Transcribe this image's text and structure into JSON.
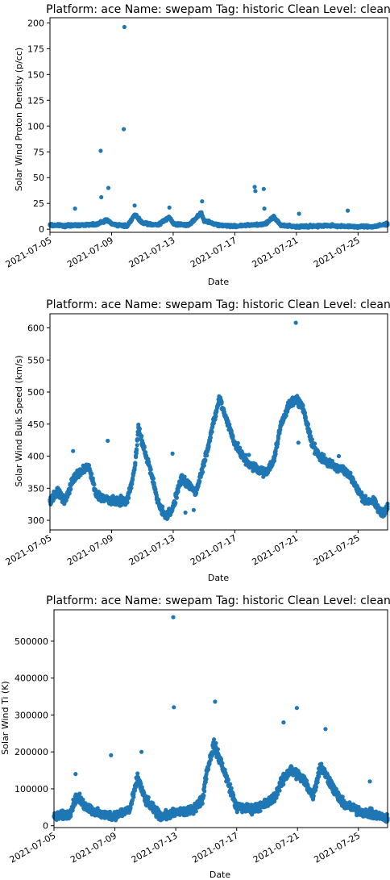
{
  "chart_data": [
    {
      "type": "scatter",
      "title": "Platform: ace Name: swepam Tag: historic Clean Level: clean",
      "xlabel": "Date",
      "ylabel": "Solar Wind Proton Density (p/cc)",
      "xlim": [
        "2021-07-05",
        "2021-07-26T22:00"
      ],
      "ylim": [
        -3,
        205
      ],
      "xticks": [
        "2021-07-05",
        "2021-07-09",
        "2021-07-13",
        "2021-07-17",
        "2021-07-21",
        "2021-07-25"
      ],
      "yticks": [
        "0",
        "25",
        "50",
        "75",
        "100",
        "125",
        "150",
        "175",
        "200"
      ],
      "color": "#1f77b4",
      "series": [
        {
          "baseline": [
            [
              "2021-07-05",
              4
            ],
            [
              "2021-07-06",
              3.5
            ],
            [
              "2021-07-07",
              4
            ],
            [
              "2021-07-08",
              5
            ],
            [
              "2021-07-08T18:00",
              9
            ],
            [
              "2021-07-09",
              5
            ],
            [
              "2021-07-10",
              3
            ],
            [
              "2021-07-10T12:00",
              14
            ],
            [
              "2021-07-11",
              6
            ],
            [
              "2021-07-12",
              4
            ],
            [
              "2021-07-12T18:00",
              12
            ],
            [
              "2021-07-13",
              5
            ],
            [
              "2021-07-14",
              4
            ],
            [
              "2021-07-14T20:00",
              16
            ],
            [
              "2021-07-15",
              8
            ],
            [
              "2021-07-16",
              4
            ],
            [
              "2021-07-17",
              3
            ],
            [
              "2021-07-18",
              4
            ],
            [
              "2021-07-19",
              5
            ],
            [
              "2021-07-19T12:00",
              12
            ],
            [
              "2021-07-20",
              4
            ],
            [
              "2021-07-21",
              2.5
            ],
            [
              "2021-07-22",
              3
            ],
            [
              "2021-07-23",
              3.5
            ],
            [
              "2021-07-24",
              3
            ],
            [
              "2021-07-25",
              2.5
            ],
            [
              "2021-07-26",
              2.5
            ],
            [
              "2021-07-26T22:00",
              5
            ]
          ],
          "spread": 2.5,
          "outliers": [
            [
              "2021-07-06T15:00",
              20
            ],
            [
              "2021-07-08T07:00",
              76
            ],
            [
              "2021-07-08T08:00",
              31
            ],
            [
              "2021-07-08T19:00",
              40
            ],
            [
              "2021-07-09T19:00",
              97
            ],
            [
              "2021-07-09T20:00",
              196
            ],
            [
              "2021-07-10T12:00",
              23
            ],
            [
              "2021-07-12T18:00",
              21
            ],
            [
              "2021-07-14T21:00",
              27
            ],
            [
              "2021-07-18T07:00",
              41
            ],
            [
              "2021-07-18T08:00",
              37
            ],
            [
              "2021-07-18T21:00",
              39
            ],
            [
              "2021-07-18T22:00",
              20
            ],
            [
              "2021-07-21T04:00",
              15
            ],
            [
              "2021-07-24T08:00",
              18
            ]
          ]
        }
      ]
    },
    {
      "type": "scatter",
      "title": "Platform: ace Name: swepam Tag: historic Clean Level: clean",
      "xlabel": "Date",
      "ylabel": "Solar Wind Bulk Speed (km/s)",
      "xlim": [
        "2021-07-05",
        "2021-07-26T22:00"
      ],
      "ylim": [
        285,
        622
      ],
      "xticks": [
        "2021-07-05",
        "2021-07-09",
        "2021-07-13",
        "2021-07-17",
        "2021-07-21",
        "2021-07-25"
      ],
      "yticks": [
        "300",
        "350",
        "400",
        "450",
        "500",
        "550",
        "600"
      ],
      "color": "#1f77b4",
      "series": [
        {
          "baseline": [
            [
              "2021-07-05",
              330
            ],
            [
              "2021-07-05T12:00",
              345
            ],
            [
              "2021-07-06",
              330
            ],
            [
              "2021-07-06T12:00",
              365
            ],
            [
              "2021-07-07",
              375
            ],
            [
              "2021-07-07T12:00",
              385
            ],
            [
              "2021-07-08",
              340
            ],
            [
              "2021-07-08T12:00",
              335
            ],
            [
              "2021-07-09",
              330
            ],
            [
              "2021-07-10",
              330
            ],
            [
              "2021-07-10T12:00",
              380
            ],
            [
              "2021-07-10T18:00",
              445
            ],
            [
              "2021-07-11",
              420
            ],
            [
              "2021-07-11T12:00",
              380
            ],
            [
              "2021-07-12",
              330
            ],
            [
              "2021-07-12T12:00",
              305
            ],
            [
              "2021-07-13",
              320
            ],
            [
              "2021-07-13T12:00",
              365
            ],
            [
              "2021-07-14",
              355
            ],
            [
              "2021-07-14T12:00",
              345
            ],
            [
              "2021-07-15",
              390
            ],
            [
              "2021-07-15T12:00",
              440
            ],
            [
              "2021-07-16",
              490
            ],
            [
              "2021-07-16T12:00",
              455
            ],
            [
              "2021-07-17",
              420
            ],
            [
              "2021-07-17T12:00",
              400
            ],
            [
              "2021-07-18",
              385
            ],
            [
              "2021-07-19",
              375
            ],
            [
              "2021-07-19T12:00",
              390
            ],
            [
              "2021-07-20",
              450
            ],
            [
              "2021-07-20T12:00",
              480
            ],
            [
              "2021-07-21",
              490
            ],
            [
              "2021-07-21T12:00",
              470
            ],
            [
              "2021-07-22",
              420
            ],
            [
              "2021-07-22T12:00",
              400
            ],
            [
              "2021-07-23",
              390
            ],
            [
              "2021-07-24",
              380
            ],
            [
              "2021-07-24T12:00",
              370
            ],
            [
              "2021-07-25",
              345
            ],
            [
              "2021-07-25T12:00",
              330
            ],
            [
              "2021-07-26",
              330
            ],
            [
              "2021-07-26T12:00",
              310
            ],
            [
              "2021-07-26T22:00",
              320
            ]
          ],
          "spread": 10,
          "outliers": [
            [
              "2021-07-06T12:00",
              408
            ],
            [
              "2021-07-08T18:00",
              424
            ],
            [
              "2021-07-12T23:00",
              404
            ],
            [
              "2021-07-13T19:00",
              312
            ],
            [
              "2021-07-14T08:00",
              316
            ],
            [
              "2021-07-17T22:00",
              402
            ],
            [
              "2021-07-20T23:00",
              608
            ],
            [
              "2021-07-21T03:00",
              421
            ],
            [
              "2021-07-23T18:00",
              400
            ]
          ]
        }
      ]
    },
    {
      "type": "scatter",
      "title": "Platform: ace Name: swepam Tag: historic Clean Level: clean",
      "xlabel": "Date",
      "ylabel": "Solar Wind Ti (K)",
      "xlim": [
        "2021-07-05",
        "2021-07-26T22:00"
      ],
      "ylim": [
        -5000,
        585000
      ],
      "xticks": [
        "2021-07-05",
        "2021-07-09",
        "2021-07-13",
        "2021-07-17",
        "2021-07-21",
        "2021-07-25"
      ],
      "yticks": [
        "0",
        "100000",
        "200000",
        "300000",
        "400000",
        "500000"
      ],
      "color": "#1f77b4",
      "series": [
        {
          "baseline": [
            [
              "2021-07-05",
              25000
            ],
            [
              "2021-07-06",
              30000
            ],
            [
              "2021-07-06T12:00",
              80000
            ],
            [
              "2021-07-07",
              55000
            ],
            [
              "2021-07-08",
              30000
            ],
            [
              "2021-07-09",
              28000
            ],
            [
              "2021-07-10",
              45000
            ],
            [
              "2021-07-10T12:00",
              130000
            ],
            [
              "2021-07-11",
              70000
            ],
            [
              "2021-07-12",
              25000
            ],
            [
              "2021-07-13",
              35000
            ],
            [
              "2021-07-14",
              40000
            ],
            [
              "2021-07-14T18:00",
              70000
            ],
            [
              "2021-07-15",
              140000
            ],
            [
              "2021-07-15T12:00",
              220000
            ],
            [
              "2021-07-16",
              170000
            ],
            [
              "2021-07-17",
              50000
            ],
            [
              "2021-07-18",
              45000
            ],
            [
              "2021-07-19",
              60000
            ],
            [
              "2021-07-19T12:00",
              80000
            ],
            [
              "2021-07-20",
              120000
            ],
            [
              "2021-07-20T12:00",
              150000
            ],
            [
              "2021-07-21",
              140000
            ],
            [
              "2021-07-21T12:00",
              120000
            ],
            [
              "2021-07-22",
              80000
            ],
            [
              "2021-07-22T12:00",
              160000
            ],
            [
              "2021-07-23",
              130000
            ],
            [
              "2021-07-23T12:00",
              90000
            ],
            [
              "2021-07-24",
              60000
            ],
            [
              "2021-07-25",
              40000
            ],
            [
              "2021-07-26",
              30000
            ],
            [
              "2021-07-26T22:00",
              20000
            ]
          ],
          "spread": 25000,
          "outliers": [
            [
              "2021-07-08T18:00",
              191000
            ],
            [
              "2021-07-12T20:00",
              565000
            ],
            [
              "2021-07-12T21:00",
              321000
            ],
            [
              "2021-07-15T14:00",
              336000
            ],
            [
              "2021-07-20T23:00",
              319000
            ],
            [
              "2021-07-20T02:00",
              280000
            ],
            [
              "2021-07-22T20:00",
              262000
            ],
            [
              "2021-07-25T18:00",
              120000
            ],
            [
              "2021-07-06T10:00",
              140000
            ],
            [
              "2021-07-10T18:00",
              200000
            ]
          ]
        }
      ]
    }
  ]
}
